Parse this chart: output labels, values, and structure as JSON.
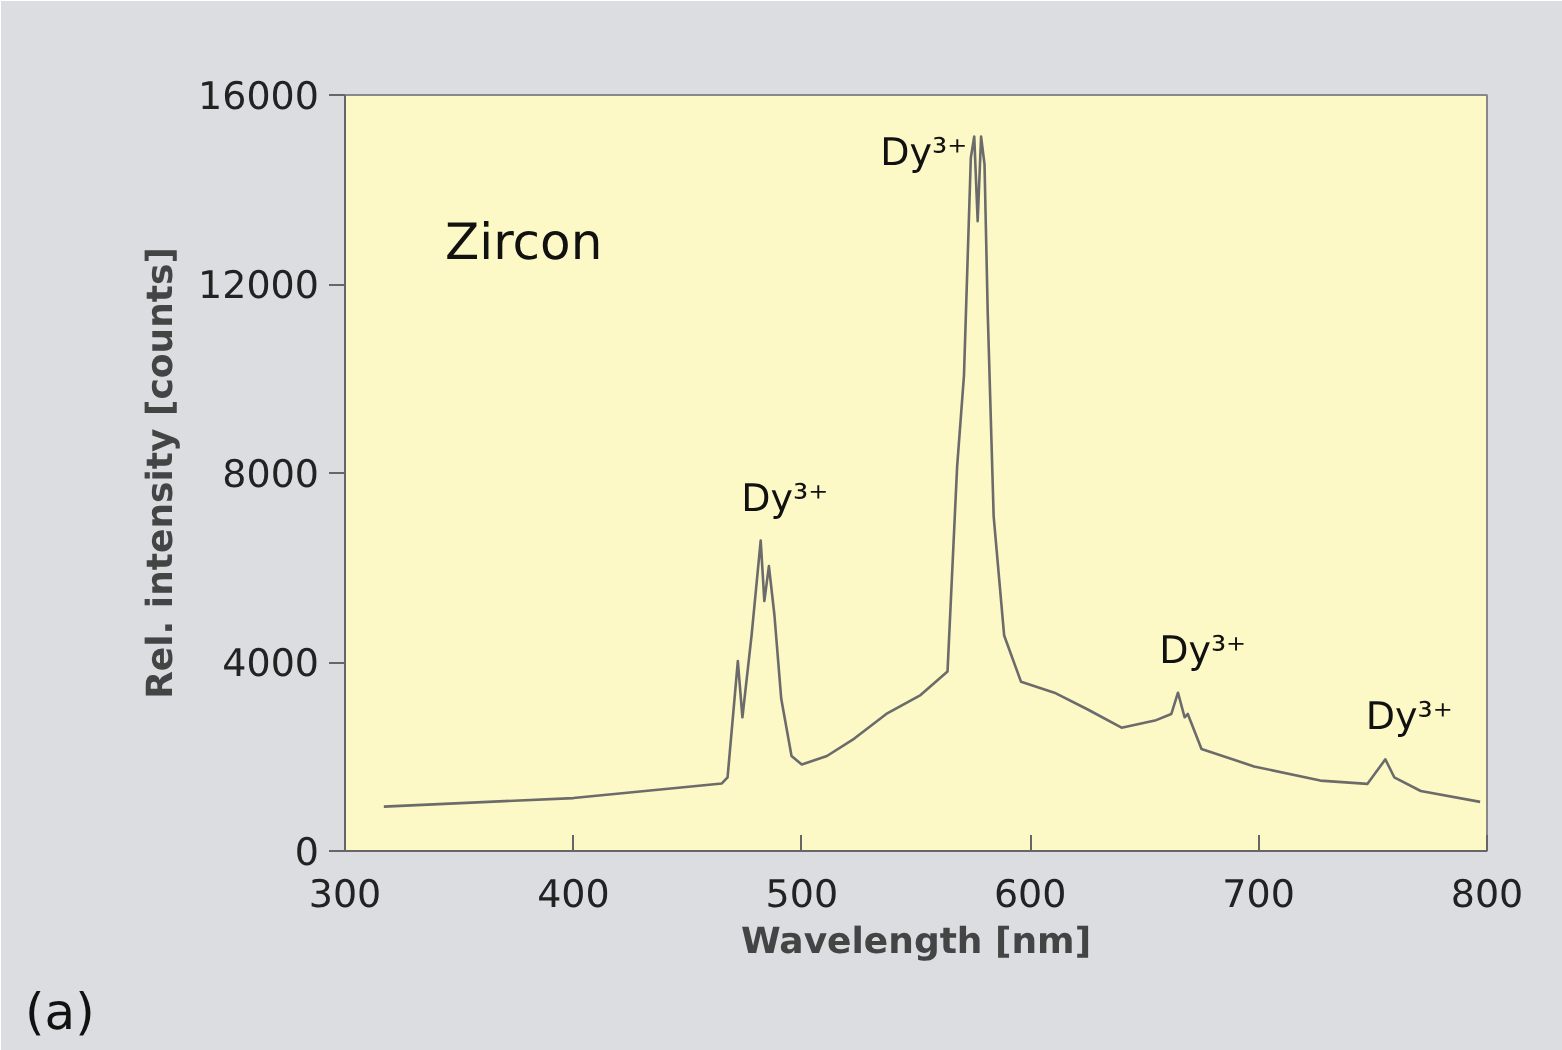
{
  "chart_data": {
    "type": "line",
    "xlabel": "Wavelength [nm]",
    "ylabel": "Rel. intensity [counts]",
    "x": [
      317,
      400,
      465,
      467.5,
      472,
      474,
      478,
      482,
      483.6,
      485.6,
      488,
      491,
      495.5,
      500,
      511,
      523,
      537,
      552,
      563.8,
      568,
      571,
      574,
      575.5,
      577,
      578.5,
      580,
      581.4,
      584,
      588.6,
      596,
      610.6,
      625,
      640,
      654.6,
      661.8,
      664.7,
      667.6,
      669,
      675,
      698,
      727,
      747.6,
      755.5,
      759.4,
      771,
      797
    ],
    "series": [
      {
        "color": "#6b6b6b",
        "values": [
          940,
          1120,
          1430,
          1560,
          4020,
          2830,
          4560,
          6570,
          5290,
          6030,
          5000,
          3220,
          2010,
          1830,
          2010,
          2380,
          2900,
          3300,
          3800,
          8130,
          10060,
          14670,
          15120,
          13330,
          15120,
          14530,
          11400,
          7080,
          4560,
          3580,
          3350,
          3000,
          2610,
          2760,
          2900,
          3350,
          2830,
          2900,
          2160,
          1790,
          1490,
          1420,
          1940,
          1560,
          1270,
          1040
        ]
      }
    ],
    "xlim": [
      300,
      800
    ],
    "ylim": [
      0,
      16000
    ],
    "xticks": [
      300,
      400,
      500,
      600,
      700,
      800
    ],
    "yticks": [
      0,
      4000,
      8000,
      12000,
      16000
    ],
    "grid": false,
    "marker": "none",
    "line_style": "solid",
    "annotations": [
      "Zircon",
      {
        "text": "Dy³⁺",
        "x": 482,
        "y": 6570
      },
      {
        "text": "Dy³⁺",
        "x": 576,
        "y": 15120
      },
      {
        "text": "Dy³⁺",
        "x": 665,
        "y": 3350
      },
      {
        "text": "Dy³⁺",
        "x": 755.5,
        "y": 1940
      },
      "(a)"
    ]
  }
}
